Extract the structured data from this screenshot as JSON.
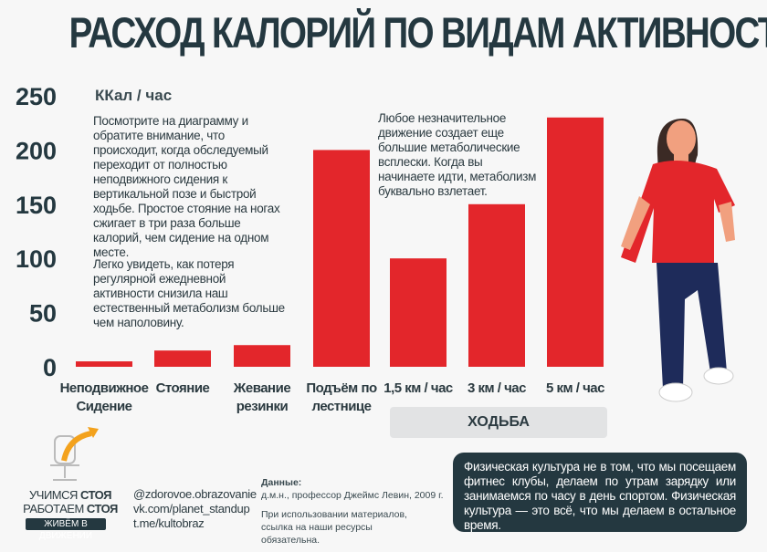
{
  "title": "РАСХОД КАЛОРИЙ ПО ВИДАМ АКТИВНОСТИ",
  "chart_data": {
    "type": "bar",
    "ylabel": "ККал / час",
    "ylim": [
      0,
      250
    ],
    "yticks": [
      0,
      50,
      100,
      150,
      200,
      250
    ],
    "categories": [
      [
        "Неподвижное",
        "Сидение"
      ],
      [
        "Стояние"
      ],
      [
        "Жевание",
        "резинки"
      ],
      [
        "Подъём по",
        "лестнице"
      ],
      [
        "1,5 км / час"
      ],
      [
        "3 км / час"
      ],
      [
        "5 км / час"
      ]
    ],
    "values": [
      5,
      15,
      20,
      200,
      100,
      150,
      230
    ],
    "group_label": "ХОДЬБА",
    "bar_color": "#e3262b",
    "grid": false
  },
  "notes": {
    "left_p1": "Посмотрите на диаграмму и обратите внимание, что происходит, когда обследуемый переходит от полностью неподвижного сидения к вертикальной позе и быстрой ходьбе. Простое стояние на ногах сжигает в три раза больше калорий, чем сидение на одном месте.",
    "left_p2": "Легко увидеть, как потеря регулярной ежедневной активности снизила наш естественный метаболизм больше чем наполовину.",
    "right": "Любое незначительное движение создает еще большие метаболические всплески. Когда вы начинаете идти, метаболизм буквально взлетает."
  },
  "logo": {
    "line1a": "УЧИМСЯ ",
    "line1b": "СТОЯ",
    "line2a": "РАБОТАЕМ ",
    "line2b": "СТОЯ",
    "line3": "ЖИВЁМ В ДВИЖЕНИИ"
  },
  "links": [
    "@zdorovoe.obrazovanie",
    "vk.com/planet_standup",
    "t.me/kultobraz"
  ],
  "source": {
    "label": "Данные:",
    "text": "д.м.н., профессор Джеймс Левин, 2009 г.",
    "notice": "При использовании материалов, ссылка на наши ресурсы обязательна."
  },
  "quote": "Физическая культура не в том, что мы посещаем фитнес клубы, делаем по утрам зарядку или занимаемся по часу в день спортом. Физическая культура — это всё, что мы делаем в остальное время."
}
